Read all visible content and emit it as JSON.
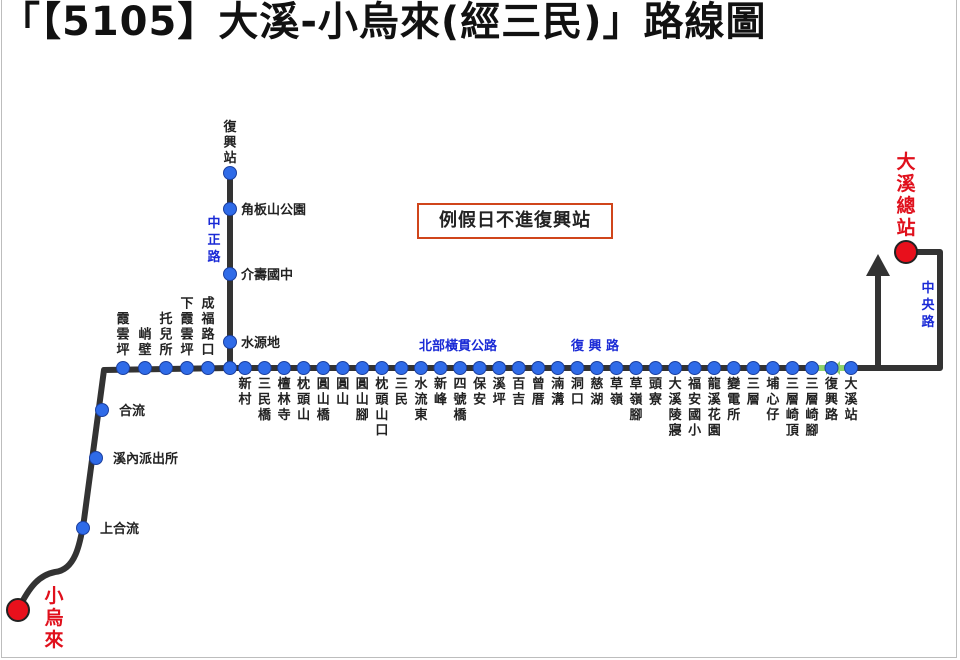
{
  "title": "「【5105】大溪-小烏來(經三民)」路線圖",
  "note": "例假日不進復興站",
  "colors": {
    "route": "#333333",
    "stop": "#2f6be8",
    "terminal": "#e8101c",
    "terminal_label": "#e0101c",
    "road_label": "#1a2ad6",
    "arrow_green": "#8ed36a"
  },
  "terminals": {
    "start": "小烏來",
    "end": "大溪總站"
  },
  "roads": {
    "zhongzheng": "中正路",
    "beibu": "北部橫貫公路",
    "fuxing": "復 興 路",
    "zhongyang": "中央路"
  },
  "branch_stops": [
    "復興站",
    "角板山公園",
    "介壽國中",
    "水源地"
  ],
  "lower_stops": [
    "上合流",
    "溪內派出所",
    "合流"
  ],
  "top_stops": [
    "霞雲坪",
    "峭壁",
    "托兒所",
    "下霞雲坪",
    "成福路口"
  ],
  "main_stops": [
    "新村",
    "三民橋",
    "檀林寺",
    "枕頭山",
    "圓山橋",
    "圓山",
    "圓山腳",
    "枕頭山口",
    "三民",
    "水流東",
    "新峰",
    "四號橋",
    "保安",
    "溪坪",
    "百吉",
    "曾厝",
    "湳溝",
    "洞口",
    "慈湖",
    "草嶺",
    "草嶺腳",
    "頭寮",
    "大溪陵寢",
    "福安國小",
    "龍溪花園",
    "變電所",
    "三層",
    "埔心仔",
    "三層崎頂",
    "三層崎腳",
    "復興路",
    "大溪站"
  ]
}
